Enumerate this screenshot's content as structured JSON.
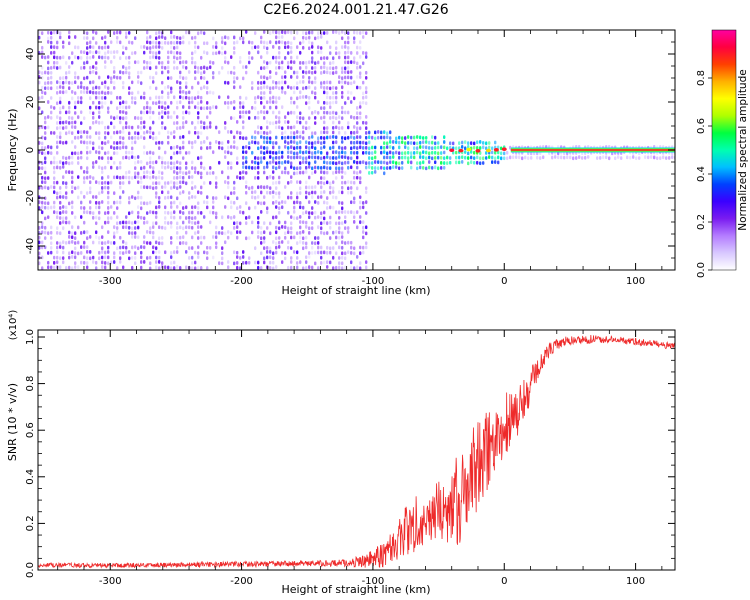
{
  "title": "C2E6.2024.001.21.47.G26",
  "colors": {
    "spectrogram_base": "#7a1cf0",
    "snr_line": "#ee2a2a",
    "colorbar": [
      "#ffffff",
      "#d8c8ff",
      "#b47cff",
      "#7a1cf0",
      "#3a00ff",
      "#0040ff",
      "#00c0ff",
      "#00ffb0",
      "#00ff40",
      "#b0ff00",
      "#ffff00",
      "#ffb000",
      "#ff4000",
      "#ff0040",
      "#ff00a0"
    ]
  },
  "chart_data": [
    {
      "type": "heatmap",
      "title": "",
      "xlabel": "Height of straight line (km)",
      "ylabel": "Frequency (Hz)",
      "xlim": [
        -355,
        130
      ],
      "ylim": [
        -50,
        50
      ],
      "xticks": [
        -300,
        -200,
        -100,
        0,
        100
      ],
      "yticks": [
        -40,
        -20,
        0,
        20,
        40
      ],
      "xtick_labels": [
        "-300",
        "-200",
        "-100",
        "0",
        "100"
      ],
      "ytick_labels": [
        "-40",
        "-20",
        "0",
        "20",
        "40"
      ],
      "colorbar": {
        "label": "Normalized spectral amplitude",
        "range": [
          0,
          1
        ],
        "ticks": [
          0,
          0.2,
          0.4,
          0.6,
          0.8
        ],
        "tick_labels": [
          "0.0",
          "0.2",
          "0.4",
          "0.6",
          "0.8"
        ]
      },
      "features": {
        "noise_region_x": [
          -355,
          -105
        ],
        "signal_onset_x": -105,
        "tone_frequency_hz": 0,
        "tone_strong_from_x": 5,
        "tone_peak_amplitude": 0.9
      }
    },
    {
      "type": "line",
      "title": "",
      "xlabel": "Height of straight line (km)",
      "ylabel": "SNR (10 * v/v)",
      "scale_note": "(x10⁴)",
      "xlim": [
        -355,
        130
      ],
      "ylim": [
        0,
        1.03
      ],
      "xticks": [
        -300,
        -200,
        -100,
        0,
        100
      ],
      "yticks": [
        0,
        0.2,
        0.4,
        0.6,
        0.8,
        1.0
      ],
      "xtick_labels": [
        "-300",
        "-200",
        "-100",
        "0",
        "100"
      ],
      "ytick_labels": [
        "0.0",
        "0.2",
        "0.4",
        "0.6",
        "0.8",
        "1.0"
      ],
      "series": [
        {
          "x": [
            -355,
            -300,
            -250,
            -200,
            -150,
            -120,
            -105,
            -95,
            -85,
            -75,
            -65,
            -55,
            -45,
            -35,
            -25,
            -15,
            -5,
            5,
            15,
            25,
            35,
            45,
            60,
            80,
            100,
            115,
            130
          ],
          "y": [
            0.02,
            0.02,
            0.022,
            0.025,
            0.028,
            0.03,
            0.04,
            0.06,
            0.1,
            0.16,
            0.22,
            0.24,
            0.26,
            0.3,
            0.38,
            0.5,
            0.58,
            0.65,
            0.72,
            0.86,
            0.95,
            0.98,
            0.99,
            0.99,
            0.98,
            0.97,
            0.96
          ],
          "noise": [
            0.01,
            0.01,
            0.01,
            0.012,
            0.012,
            0.015,
            0.03,
            0.05,
            0.08,
            0.12,
            0.12,
            0.12,
            0.14,
            0.2,
            0.22,
            0.18,
            0.16,
            0.14,
            0.1,
            0.05,
            0.03,
            0.02,
            0.02,
            0.015,
            0.015,
            0.015,
            0.015
          ]
        }
      ]
    }
  ]
}
